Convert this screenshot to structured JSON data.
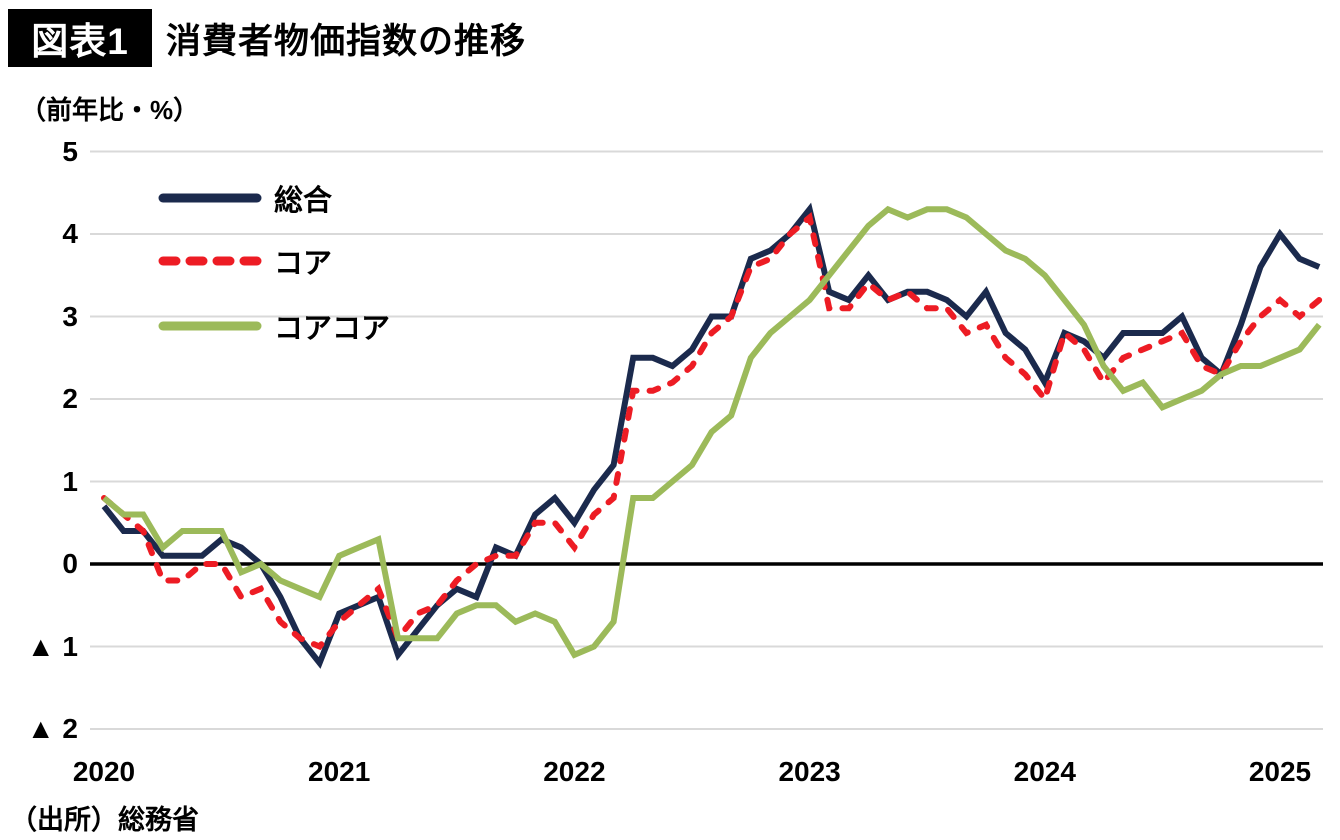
{
  "header": {
    "badge": "図表1",
    "title": "消費者物価指数の推移"
  },
  "axis_unit_label": "（前年比・%）",
  "source": "（出所）総務省",
  "colors": {
    "sougou": "#1b2a4d",
    "core": "#ed1c24",
    "corecore": "#9cba5a",
    "gridline": "#d9d9d9",
    "zero_line": "#000000"
  },
  "chart_data": {
    "type": "line",
    "title": "消費者物価指数の推移",
    "unit": "前年比・%",
    "x_start": "2020-01",
    "x_end": "2025-03",
    "x_interval": "monthly",
    "x_tick_labels": [
      "2020",
      "2021",
      "2022",
      "2023",
      "2024",
      "2025"
    ],
    "y_ticks": [
      5,
      4,
      3,
      2,
      1,
      0,
      -1,
      -2
    ],
    "y_tick_labels": [
      "5",
      "4",
      "3",
      "2",
      "1",
      "0",
      "▲ 1",
      "▲ 2"
    ],
    "ylim": [
      -2,
      5
    ],
    "grid": "horizontal",
    "legend_position": "inside-top-left",
    "series": [
      {
        "name": "総合",
        "style": "solid",
        "color": "#1b2a4d",
        "values": [
          0.7,
          0.4,
          0.4,
          0.1,
          0.1,
          0.1,
          0.3,
          0.2,
          0.0,
          -0.4,
          -0.9,
          -1.2,
          -0.6,
          -0.5,
          -0.4,
          -1.1,
          -0.8,
          -0.5,
          -0.3,
          -0.4,
          0.2,
          0.1,
          0.6,
          0.8,
          0.5,
          0.9,
          1.2,
          2.5,
          2.5,
          2.4,
          2.6,
          3.0,
          3.0,
          3.7,
          3.8,
          4.0,
          4.3,
          3.3,
          3.2,
          3.5,
          3.2,
          3.3,
          3.3,
          3.2,
          3.0,
          3.3,
          2.8,
          2.6,
          2.2,
          2.8,
          2.7,
          2.5,
          2.8,
          2.8,
          2.8,
          3.0,
          2.5,
          2.3,
          2.9,
          3.6,
          4.0,
          3.7,
          3.6
        ]
      },
      {
        "name": "コア",
        "style": "dashed",
        "color": "#ed1c24",
        "values": [
          0.8,
          0.6,
          0.4,
          -0.2,
          -0.2,
          0.0,
          0.0,
          -0.4,
          -0.3,
          -0.7,
          -0.9,
          -1.0,
          -0.7,
          -0.5,
          -0.3,
          -0.9,
          -0.6,
          -0.5,
          -0.2,
          0.0,
          0.1,
          0.1,
          0.5,
          0.5,
          0.2,
          0.6,
          0.8,
          2.1,
          2.1,
          2.2,
          2.4,
          2.8,
          3.0,
          3.6,
          3.7,
          4.0,
          4.2,
          3.1,
          3.1,
          3.4,
          3.2,
          3.3,
          3.1,
          3.1,
          2.8,
          2.9,
          2.5,
          2.3,
          2.0,
          2.8,
          2.6,
          2.2,
          2.5,
          2.6,
          2.7,
          2.8,
          2.4,
          2.3,
          2.7,
          3.0,
          3.2,
          3.0,
          3.2
        ]
      },
      {
        "name": "コアコア",
        "style": "solid",
        "color": "#9cba5a",
        "values": [
          0.8,
          0.6,
          0.6,
          0.2,
          0.4,
          0.4,
          0.4,
          -0.1,
          0.0,
          -0.2,
          -0.3,
          -0.4,
          0.1,
          0.2,
          0.3,
          -0.9,
          -0.9,
          -0.9,
          -0.6,
          -0.5,
          -0.5,
          -0.7,
          -0.6,
          -0.7,
          -1.1,
          -1.0,
          -0.7,
          0.8,
          0.8,
          1.0,
          1.2,
          1.6,
          1.8,
          2.5,
          2.8,
          3.0,
          3.2,
          3.5,
          3.8,
          4.1,
          4.3,
          4.2,
          4.3,
          4.3,
          4.2,
          4.0,
          3.8,
          3.7,
          3.5,
          3.2,
          2.9,
          2.4,
          2.1,
          2.2,
          1.9,
          2.0,
          2.1,
          2.3,
          2.4,
          2.4,
          2.5,
          2.6,
          2.9
        ]
      }
    ]
  }
}
